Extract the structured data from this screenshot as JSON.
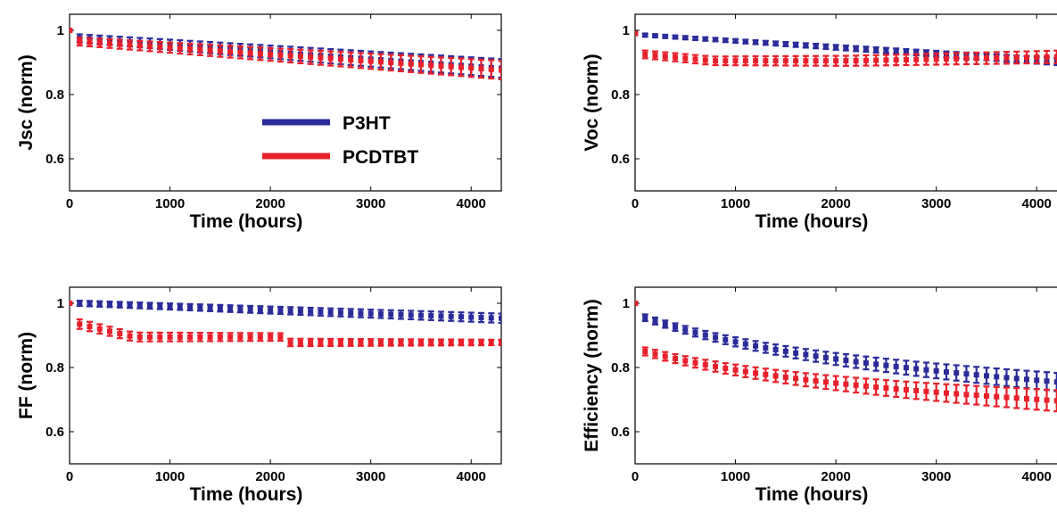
{
  "colors": {
    "P3HT": "#2b2b9a",
    "PCDTBT": "#e8202a"
  },
  "chart_data": [
    {
      "type": "scatter",
      "ylabel": "Jsc (norm)",
      "xlabel": "Time (hours)",
      "xlim": [
        0,
        4300
      ],
      "ylim": [
        0.5,
        1.05
      ],
      "xticks": [
        "0",
        "1000",
        "2000",
        "3000",
        "4000"
      ],
      "yticks": [
        "0.6",
        "0.8",
        "1"
      ],
      "legend": {
        "placement": "center",
        "entries": [
          "P3HT",
          "PCDTBT"
        ]
      },
      "series": [
        {
          "name": "P3HT",
          "start": 1.0,
          "first": 0.975,
          "end": 0.875,
          "err0": 0.012,
          "err1": 0.03,
          "shape": "linear"
        },
        {
          "name": "PCDTBT",
          "start": 1.0,
          "first": 0.965,
          "end": 0.87,
          "err0": 0.012,
          "err1": 0.03,
          "shape": "linear"
        }
      ]
    },
    {
      "type": "scatter",
      "ylabel": "Voc (norm)",
      "xlabel": "Time (hours)",
      "xlim": [
        0,
        4300
      ],
      "ylim": [
        0.5,
        1.05
      ],
      "xticks": [
        "0",
        "1000",
        "2000",
        "3000",
        "4000"
      ],
      "yticks": [
        "0.6",
        "0.8",
        "1"
      ],
      "series": [
        {
          "name": "P3HT",
          "start": 0.99,
          "first": 0.985,
          "end": 0.895,
          "err0": 0.004,
          "err1": 0.012,
          "shape": "linear"
        },
        {
          "name": "PCDTBT",
          "start": 0.99,
          "first": 0.925,
          "end": 0.92,
          "err0": 0.012,
          "err1": 0.02,
          "shape": "flat",
          "mid": 0.905
        }
      ]
    },
    {
      "type": "scatter",
      "ylabel": "FF (norm)",
      "xlabel": "Time (hours)",
      "xlim": [
        0,
        4300
      ],
      "ylim": [
        0.5,
        1.05
      ],
      "xticks": [
        "0",
        "1000",
        "2000",
        "3000",
        "4000"
      ],
      "yticks": [
        "0.6",
        "0.8",
        "1"
      ],
      "series": [
        {
          "name": "P3HT",
          "start": 1.0,
          "first": 1.0,
          "end": 0.95,
          "err0": 0.008,
          "err1": 0.015,
          "shape": "linear"
        },
        {
          "name": "PCDTBT",
          "start": 1.0,
          "first": 0.935,
          "end": 0.878,
          "err0": 0.015,
          "err1": 0.008,
          "shape": "step",
          "mid": 0.895
        }
      ]
    },
    {
      "type": "scatter",
      "ylabel": "Efficiency (norm)",
      "xlabel": "Time (hours)",
      "xlim": [
        0,
        4300
      ],
      "ylim": [
        0.5,
        1.05
      ],
      "xticks": [
        "0",
        "1000",
        "2000",
        "3000",
        "4000"
      ],
      "yticks": [
        "0.6",
        "0.8",
        "1"
      ],
      "series": [
        {
          "name": "P3HT",
          "start": 1.0,
          "first": 0.955,
          "end": 0.74,
          "err0": 0.01,
          "err1": 0.03,
          "shape": "decay"
        },
        {
          "name": "PCDTBT",
          "start": 1.0,
          "first": 0.85,
          "end": 0.685,
          "err0": 0.012,
          "err1": 0.035,
          "shape": "decay"
        }
      ]
    }
  ]
}
